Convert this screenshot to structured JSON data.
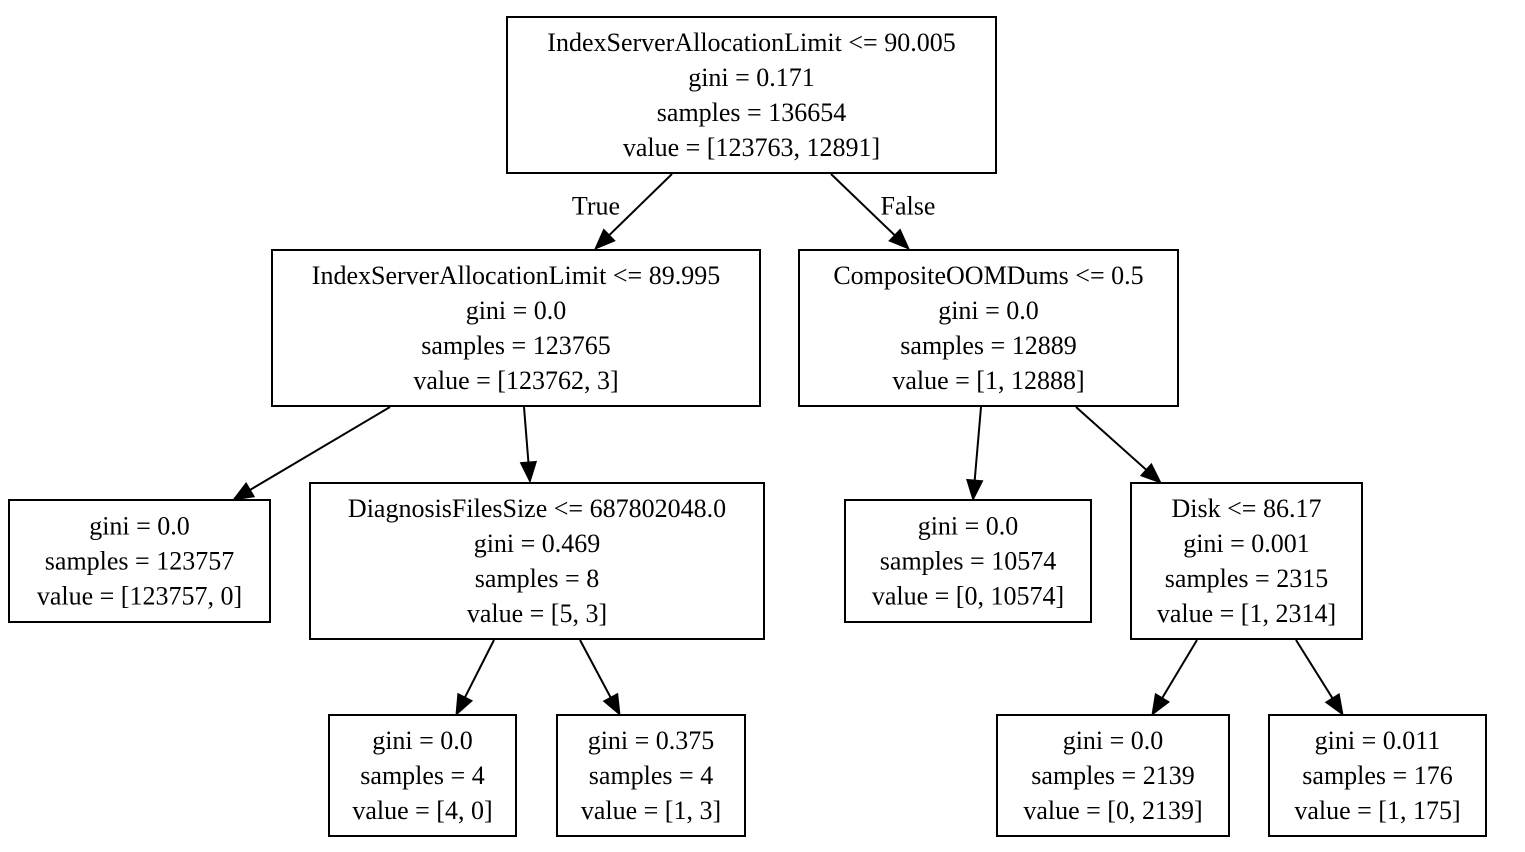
{
  "tree": {
    "nodes": [
      {
        "id": "n0",
        "lines": [
          "IndexServerAllocationLimit <= 90.005",
          "gini = 0.171",
          "samples = 136654",
          "value = [123763, 12891]"
        ]
      },
      {
        "id": "n1",
        "lines": [
          "IndexServerAllocationLimit <= 89.995",
          "gini = 0.0",
          "samples = 123765",
          "value = [123762, 3]"
        ]
      },
      {
        "id": "n2",
        "lines": [
          "gini = 0.0",
          "samples = 123757",
          "value = [123757, 0]"
        ]
      },
      {
        "id": "n3",
        "lines": [
          "DiagnosisFilesSize <= 687802048.0",
          "gini = 0.469",
          "samples = 8",
          "value = [5, 3]"
        ]
      },
      {
        "id": "n4",
        "lines": [
          "gini = 0.0",
          "samples = 4",
          "value = [4, 0]"
        ]
      },
      {
        "id": "n5",
        "lines": [
          "gini = 0.375",
          "samples = 4",
          "value = [1, 3]"
        ]
      },
      {
        "id": "n6",
        "lines": [
          "CompositeOOMDums <= 0.5",
          "gini = 0.0",
          "samples = 12889",
          "value = [1, 12888]"
        ]
      },
      {
        "id": "n7",
        "lines": [
          "gini = 0.0",
          "samples = 10574",
          "value = [0, 10574]"
        ]
      },
      {
        "id": "n8",
        "lines": [
          "Disk <= 86.17",
          "gini = 0.001",
          "samples = 2315",
          "value = [1, 2314]"
        ]
      },
      {
        "id": "n9",
        "lines": [
          "gini = 0.0",
          "samples = 2139",
          "value = [0, 2139]"
        ]
      },
      {
        "id": "n10",
        "lines": [
          "gini = 0.011",
          "samples = 176",
          "value = [1, 175]"
        ]
      }
    ],
    "edges": [
      {
        "from": "n0",
        "to": "n1",
        "label": "True"
      },
      {
        "from": "n0",
        "to": "n6",
        "label": "False"
      },
      {
        "from": "n1",
        "to": "n2",
        "label": ""
      },
      {
        "from": "n1",
        "to": "n3",
        "label": ""
      },
      {
        "from": "n3",
        "to": "n4",
        "label": ""
      },
      {
        "from": "n3",
        "to": "n5",
        "label": ""
      },
      {
        "from": "n6",
        "to": "n7",
        "label": ""
      },
      {
        "from": "n6",
        "to": "n8",
        "label": ""
      },
      {
        "from": "n8",
        "to": "n9",
        "label": ""
      },
      {
        "from": "n8",
        "to": "n10",
        "label": ""
      }
    ]
  }
}
